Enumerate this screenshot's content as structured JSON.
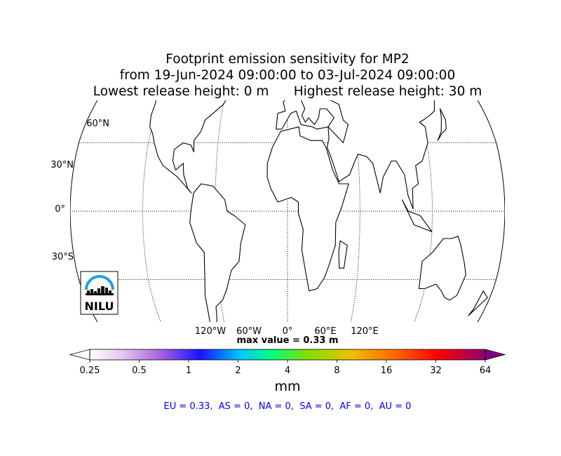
{
  "title": {
    "line1": "Footprint emission sensitivity for MP2",
    "line2": "from 19-Jun-2024 09:00:00 to 03-Jul-2024 09:00:00",
    "line3": "Lowest release height: 0 m      Highest release height: 30 m"
  },
  "map": {
    "projection": "robinson",
    "lat_labels": [
      {
        "lat": 60,
        "label": "60°N"
      },
      {
        "lat": 30,
        "label": "30°N"
      },
      {
        "lat": 0,
        "label": "0°"
      },
      {
        "lat": -30,
        "label": "30°S"
      }
    ],
    "lon_labels": [
      {
        "lon": -120,
        "label": "120°W"
      },
      {
        "lon": -60,
        "label": "60°W"
      },
      {
        "lon": 0,
        "label": "0°"
      },
      {
        "lon": 60,
        "label": "60°E"
      },
      {
        "lon": 120,
        "label": "120°E"
      }
    ],
    "gridline_style": "dotted",
    "ocean_color": "#ffffff",
    "coast_color": "#000000",
    "footprint_colors": [
      "#f0d8f4",
      "#d98ee6",
      "#b060e0",
      "#7a40f0",
      "#3020ff",
      "#00c8ff",
      "#ff3070"
    ],
    "logo": {
      "text": "NILU",
      "arc_color": "#1ea0e6"
    }
  },
  "max_value_text": "max value = 0.33 m",
  "colorbar": {
    "unit": "mm",
    "ticks": [
      "0.25",
      "0.5",
      "1",
      "2",
      "4",
      "8",
      "16",
      "32",
      "64"
    ],
    "extend": "both",
    "colors": [
      "#ffffff",
      "#d8a8e8",
      "#9a50e0",
      "#2000ff",
      "#00ffff",
      "#40ff00",
      "#e0e000",
      "#ff9000",
      "#ff0000",
      "#a00070",
      "#800080"
    ]
  },
  "summary": "EU = 0.33,  AS = 0,  NA = 0,  SA = 0,  AF = 0,  AU = 0"
}
